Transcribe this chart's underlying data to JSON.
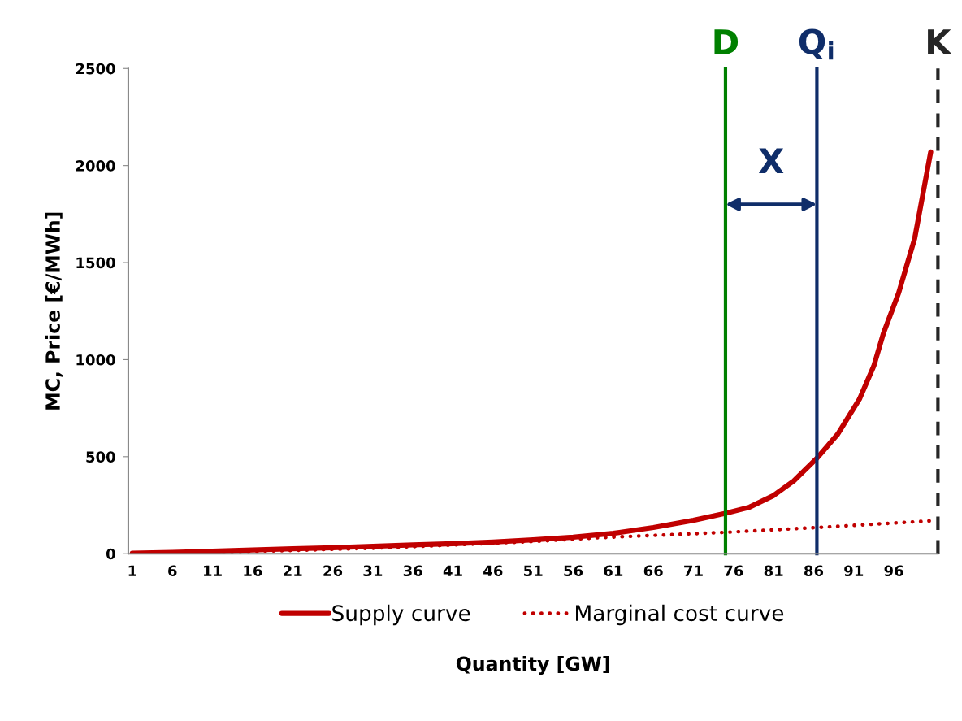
{
  "chart_data": {
    "type": "line",
    "xlabel": "Quantity [GW]",
    "ylabel": "MC, Price [€/MWh]",
    "xlim": [
      0.5,
      101.5
    ],
    "xticks": [
      1,
      6,
      11,
      16,
      21,
      26,
      31,
      36,
      41,
      46,
      51,
      56,
      61,
      66,
      71,
      76,
      81,
      86,
      91,
      96
    ],
    "ylim": [
      0,
      2500
    ],
    "yticks": [
      0,
      500,
      1000,
      1500,
      2000,
      2500
    ],
    "grid": false,
    "legend": "bottom",
    "marker": "none",
    "series": [
      {
        "name": "Supply curve",
        "color": "#c00000",
        "line_style": "solid",
        "x": [
          1,
          6,
          11,
          16,
          21,
          26,
          31,
          36,
          41,
          46,
          51,
          56,
          61,
          66,
          71,
          75,
          78,
          81,
          83.5,
          86.4,
          89,
          91.7,
          93.5,
          94.7,
          96.6,
          98.6,
          100.6
        ],
        "values": [
          2,
          7,
          13,
          19,
          25,
          31,
          38,
          45,
          52,
          60,
          72,
          85,
          105,
          135,
          172,
          208,
          240,
          300,
          375,
          492,
          616,
          796,
          967,
          1135,
          1344,
          1624,
          2070
        ]
      },
      {
        "name": "Marginal cost curve",
        "color": "#c00000",
        "line_style": "dotted",
        "x": [
          1,
          11,
          21,
          31,
          41,
          51,
          59,
          67,
          75,
          86,
          101
        ],
        "values": [
          1,
          8,
          17,
          28,
          45,
          63,
          82,
          96,
          110,
          134,
          170
        ]
      }
    ],
    "ref_lines": [
      {
        "axis": "x",
        "value": 75,
        "label": "D",
        "color": "#008000",
        "line_style": "solid"
      },
      {
        "axis": "x",
        "value": 86.4,
        "label": "Q$_{i}$",
        "color": "#0f2d69",
        "line_style": "solid"
      },
      {
        "axis": "x",
        "value": 101.5,
        "label": "K",
        "color": "#262626",
        "line_style": "dashed"
      }
    ],
    "annotations": [
      "X"
    ]
  }
}
